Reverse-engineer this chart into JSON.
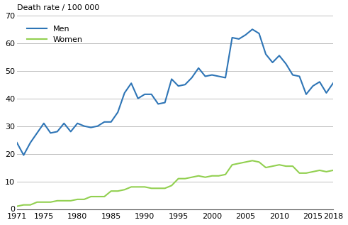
{
  "years": [
    1971,
    1972,
    1973,
    1974,
    1975,
    1976,
    1977,
    1978,
    1979,
    1980,
    1981,
    1982,
    1983,
    1984,
    1985,
    1986,
    1987,
    1988,
    1989,
    1990,
    1991,
    1992,
    1993,
    1994,
    1995,
    1996,
    1997,
    1998,
    1999,
    2000,
    2001,
    2002,
    2003,
    2004,
    2005,
    2006,
    2007,
    2008,
    2009,
    2010,
    2011,
    2012,
    2013,
    2014,
    2015,
    2016,
    2017,
    2018
  ],
  "men": [
    24.0,
    19.5,
    24.0,
    27.5,
    31.0,
    27.5,
    28.0,
    31.0,
    28.0,
    31.0,
    30.0,
    29.5,
    30.0,
    31.5,
    31.5,
    35.0,
    42.0,
    45.5,
    40.0,
    41.5,
    41.5,
    38.0,
    38.5,
    47.0,
    44.5,
    45.0,
    47.5,
    51.0,
    48.0,
    48.5,
    48.0,
    47.5,
    62.0,
    61.5,
    63.0,
    65.0,
    63.5,
    56.0,
    53.0,
    55.5,
    52.5,
    48.5,
    48.0,
    41.5,
    44.5,
    46.0,
    42.0,
    45.5
  ],
  "women": [
    1.0,
    1.5,
    1.5,
    2.5,
    2.5,
    2.5,
    3.0,
    3.0,
    3.0,
    3.5,
    3.5,
    4.5,
    4.5,
    4.5,
    6.5,
    6.5,
    7.0,
    8.0,
    8.0,
    8.0,
    7.5,
    7.5,
    7.5,
    8.5,
    11.0,
    11.0,
    11.5,
    12.0,
    11.5,
    12.0,
    12.0,
    12.5,
    16.0,
    16.5,
    17.0,
    17.5,
    17.0,
    15.0,
    15.5,
    16.0,
    15.5,
    15.5,
    13.0,
    13.0,
    13.5,
    14.0,
    13.5,
    14.0
  ],
  "men_color": "#2E75B6",
  "women_color": "#92D050",
  "ylabel": "Death rate / 100 000",
  "ylim": [
    0,
    70
  ],
  "yticks": [
    0,
    10,
    20,
    30,
    40,
    50,
    60,
    70
  ],
  "xlim": [
    1971,
    2018
  ],
  "xticks": [
    1971,
    1975,
    1980,
    1985,
    1990,
    1995,
    2000,
    2005,
    2010,
    2015,
    2018
  ],
  "legend_men": "Men",
  "legend_women": "Women",
  "grid_color": "#BEBEBE",
  "background_color": "#FFFFFF",
  "linewidth": 1.5
}
